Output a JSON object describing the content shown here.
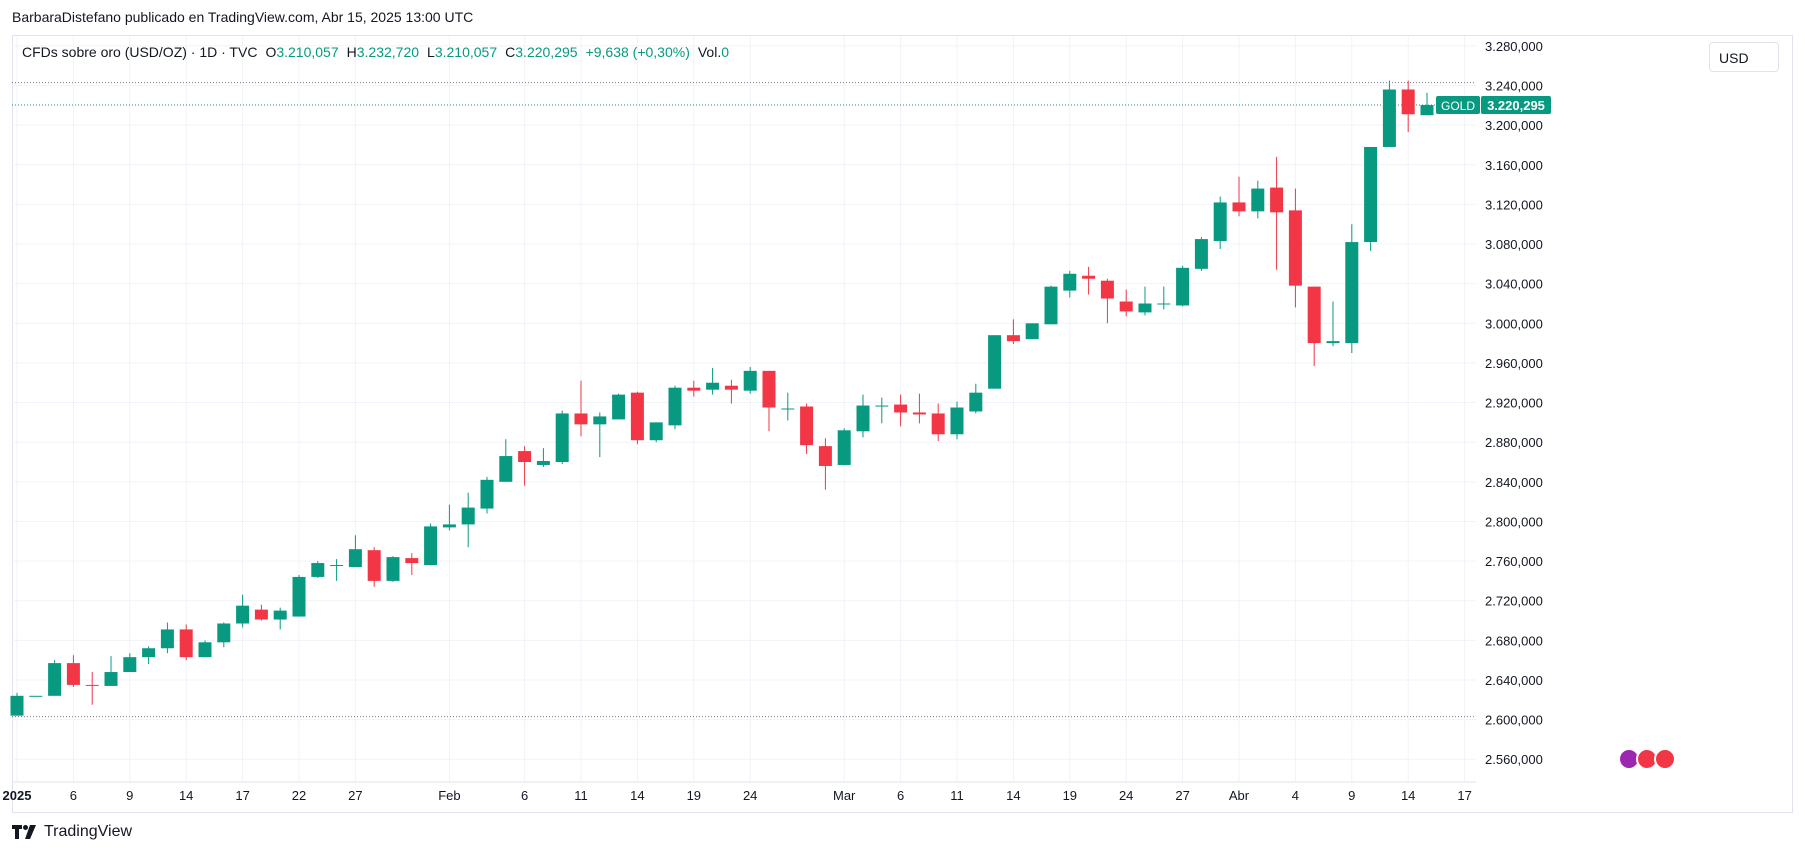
{
  "header": {
    "publish_line": "BarbaraDistefano publicado en TradingView.com, Abr 15, 2025 13:00 UTC"
  },
  "legend": {
    "symbol": "CFDs sobre oro (USD/OZ) · 1D · TVC",
    "open_label": "O",
    "open_value": "3.210,057",
    "high_label": "H",
    "high_value": "3.232,720",
    "low_label": "L",
    "low_value": "3.210,057",
    "close_label": "C",
    "close_value": "3.220,295",
    "change": "+9,638 (+0,30%)",
    "vol_label": "Vol.",
    "vol_value": "0"
  },
  "currency_button": "USD",
  "price_tag": {
    "symbol": "GOLD",
    "value": "3.220,295"
  },
  "brand": "TradingView",
  "colors": {
    "up": "#089981",
    "down": "#f23645",
    "grid": "#f0f3fa",
    "axis_text": "#131722"
  },
  "chart_data": {
    "type": "candlestick",
    "y_axis_ticks": [
      "2.560,000",
      "2.600,000",
      "2.640,000",
      "2.680,000",
      "2.720,000",
      "2.760,000",
      "2.800,000",
      "2.840,000",
      "2.880,000",
      "2.920,000",
      "2.960,000",
      "3.000,000",
      "3.040,000",
      "3.080,000",
      "3.120,000",
      "3.160,000",
      "3.200,000",
      "3.240,000",
      "3.280,000"
    ],
    "y_tick_values": [
      2560,
      2600,
      2640,
      2680,
      2720,
      2760,
      2800,
      2840,
      2880,
      2920,
      2960,
      3000,
      3040,
      3080,
      3120,
      3160,
      3200,
      3240,
      3280
    ],
    "ylim": [
      2537,
      3290
    ],
    "x_axis_labels": [
      {
        "label": "2025",
        "index": 0,
        "bold": true
      },
      {
        "label": "6",
        "index": 3
      },
      {
        "label": "9",
        "index": 6
      },
      {
        "label": "14",
        "index": 9
      },
      {
        "label": "17",
        "index": 12
      },
      {
        "label": "22",
        "index": 15
      },
      {
        "label": "27",
        "index": 18
      },
      {
        "label": "Feb",
        "index": 23
      },
      {
        "label": "6",
        "index": 27
      },
      {
        "label": "11",
        "index": 30
      },
      {
        "label": "14",
        "index": 33
      },
      {
        "label": "19",
        "index": 36
      },
      {
        "label": "24",
        "index": 39
      },
      {
        "label": "Mar",
        "index": 44
      },
      {
        "label": "6",
        "index": 47
      },
      {
        "label": "11",
        "index": 50
      },
      {
        "label": "14",
        "index": 53
      },
      {
        "label": "19",
        "index": 56
      },
      {
        "label": "24",
        "index": 59
      },
      {
        "label": "27",
        "index": 62
      },
      {
        "label": "Abr",
        "index": 65
      },
      {
        "label": "4",
        "index": 68
      },
      {
        "label": "9",
        "index": 71
      },
      {
        "label": "14",
        "index": 74
      },
      {
        "label": "17",
        "index": 77
      }
    ],
    "dotted_levels": [
      3243,
      3220.295,
      2603
    ],
    "last_close": 3220.295,
    "candles": [
      {
        "o": 2604,
        "h": 2627,
        "l": 2604,
        "c": 2624
      },
      {
        "o": 2624,
        "h": 2624,
        "l": 2624,
        "c": 2624
      },
      {
        "o": 2624,
        "h": 2660,
        "l": 2624,
        "c": 2657
      },
      {
        "o": 2657,
        "h": 2665,
        "l": 2633,
        "c": 2635
      },
      {
        "o": 2635,
        "h": 2648,
        "l": 2615,
        "c": 2634
      },
      {
        "o": 2634,
        "h": 2664,
        "l": 2634,
        "c": 2648
      },
      {
        "o": 2648,
        "h": 2667,
        "l": 2648,
        "c": 2663
      },
      {
        "o": 2663,
        "h": 2674,
        "l": 2656,
        "c": 2672
      },
      {
        "o": 2672,
        "h": 2698,
        "l": 2667,
        "c": 2691
      },
      {
        "o": 2691,
        "h": 2696,
        "l": 2660,
        "c": 2663
      },
      {
        "o": 2663,
        "h": 2680,
        "l": 2663,
        "c": 2678
      },
      {
        "o": 2678,
        "h": 2698,
        "l": 2673,
        "c": 2697
      },
      {
        "o": 2697,
        "h": 2726,
        "l": 2693,
        "c": 2715
      },
      {
        "o": 2711,
        "h": 2716,
        "l": 2700,
        "c": 2701
      },
      {
        "o": 2701,
        "h": 2713,
        "l": 2691,
        "c": 2710
      },
      {
        "o": 2704,
        "h": 2746,
        "l": 2704,
        "c": 2744
      },
      {
        "o": 2744,
        "h": 2760,
        "l": 2743,
        "c": 2758
      },
      {
        "o": 2755,
        "h": 2762,
        "l": 2740,
        "c": 2756
      },
      {
        "o": 2754,
        "h": 2786,
        "l": 2754,
        "c": 2772
      },
      {
        "o": 2771,
        "h": 2774,
        "l": 2734,
        "c": 2740
      },
      {
        "o": 2740,
        "h": 2765,
        "l": 2739,
        "c": 2764
      },
      {
        "o": 2763,
        "h": 2768,
        "l": 2746,
        "c": 2758
      },
      {
        "o": 2756,
        "h": 2798,
        "l": 2756,
        "c": 2795
      },
      {
        "o": 2794,
        "h": 2817,
        "l": 2791,
        "c": 2797
      },
      {
        "o": 2797,
        "h": 2829,
        "l": 2774,
        "c": 2814
      },
      {
        "o": 2813,
        "h": 2845,
        "l": 2808,
        "c": 2842
      },
      {
        "o": 2840,
        "h": 2883,
        "l": 2840,
        "c": 2866
      },
      {
        "o": 2871,
        "h": 2876,
        "l": 2836,
        "c": 2860
      },
      {
        "o": 2857,
        "h": 2874,
        "l": 2855,
        "c": 2861
      },
      {
        "o": 2860,
        "h": 2912,
        "l": 2858,
        "c": 2909
      },
      {
        "o": 2909,
        "h": 2942,
        "l": 2886,
        "c": 2898
      },
      {
        "o": 2898,
        "h": 2910,
        "l": 2865,
        "c": 2906
      },
      {
        "o": 2903,
        "h": 2929,
        "l": 2903,
        "c": 2928
      },
      {
        "o": 2930,
        "h": 2931,
        "l": 2878,
        "c": 2882
      },
      {
        "o": 2882,
        "h": 2900,
        "l": 2880,
        "c": 2900
      },
      {
        "o": 2897,
        "h": 2937,
        "l": 2893,
        "c": 2935
      },
      {
        "o": 2935,
        "h": 2942,
        "l": 2926,
        "c": 2932
      },
      {
        "o": 2933,
        "h": 2955,
        "l": 2928,
        "c": 2940
      },
      {
        "o": 2937,
        "h": 2943,
        "l": 2919,
        "c": 2933
      },
      {
        "o": 2932,
        "h": 2956,
        "l": 2929,
        "c": 2952
      },
      {
        "o": 2952,
        "h": 2952,
        "l": 2891,
        "c": 2915
      },
      {
        "o": 2914,
        "h": 2930,
        "l": 2902,
        "c": 2914
      },
      {
        "o": 2916,
        "h": 2919,
        "l": 2868,
        "c": 2877
      },
      {
        "o": 2876,
        "h": 2884,
        "l": 2832,
        "c": 2856
      },
      {
        "o": 2857,
        "h": 2894,
        "l": 2857,
        "c": 2892
      },
      {
        "o": 2891,
        "h": 2928,
        "l": 2885,
        "c": 2917
      },
      {
        "o": 2917,
        "h": 2925,
        "l": 2899,
        "c": 2917
      },
      {
        "o": 2918,
        "h": 2928,
        "l": 2896,
        "c": 2910
      },
      {
        "o": 2910,
        "h": 2929,
        "l": 2899,
        "c": 2908
      },
      {
        "o": 2909,
        "h": 2919,
        "l": 2881,
        "c": 2888
      },
      {
        "o": 2888,
        "h": 2921,
        "l": 2883,
        "c": 2915
      },
      {
        "o": 2911,
        "h": 2939,
        "l": 2909,
        "c": 2930
      },
      {
        "o": 2934,
        "h": 2988,
        "l": 2934,
        "c": 2988
      },
      {
        "o": 2988,
        "h": 3004,
        "l": 2979,
        "c": 2982
      },
      {
        "o": 2984,
        "h": 3000,
        "l": 2984,
        "c": 3000
      },
      {
        "o": 2999,
        "h": 3038,
        "l": 2999,
        "c": 3037
      },
      {
        "o": 3033,
        "h": 3053,
        "l": 3026,
        "c": 3050
      },
      {
        "o": 3048,
        "h": 3057,
        "l": 3029,
        "c": 3045
      },
      {
        "o": 3043,
        "h": 3045,
        "l": 3000,
        "c": 3025
      },
      {
        "o": 3022,
        "h": 3034,
        "l": 3007,
        "c": 3012
      },
      {
        "o": 3011,
        "h": 3037,
        "l": 3008,
        "c": 3020
      },
      {
        "o": 3019,
        "h": 3037,
        "l": 3014,
        "c": 3020
      },
      {
        "o": 3018,
        "h": 3058,
        "l": 3017,
        "c": 3056
      },
      {
        "o": 3055,
        "h": 3087,
        "l": 3053,
        "c": 3085
      },
      {
        "o": 3083,
        "h": 3128,
        "l": 3075,
        "c": 3122
      },
      {
        "o": 3122,
        "h": 3148,
        "l": 3108,
        "c": 3113
      },
      {
        "o": 3113,
        "h": 3144,
        "l": 3106,
        "c": 3136
      },
      {
        "o": 3137,
        "h": 3168,
        "l": 3054,
        "c": 3112
      },
      {
        "o": 3114,
        "h": 3136,
        "l": 3016,
        "c": 3038
      },
      {
        "o": 3037,
        "h": 3037,
        "l": 2957,
        "c": 2980
      },
      {
        "o": 2980,
        "h": 3022,
        "l": 2977,
        "c": 2982
      },
      {
        "o": 2980,
        "h": 3100,
        "l": 2970,
        "c": 3082
      },
      {
        "o": 3082,
        "h": 3178,
        "l": 3073,
        "c": 3178
      },
      {
        "o": 3178,
        "h": 3245,
        "l": 3178,
        "c": 3236
      },
      {
        "o": 3236,
        "h": 3245,
        "l": 3193,
        "c": 3211
      },
      {
        "o": 3210.057,
        "h": 3232.72,
        "l": 3210.057,
        "c": 3220.295
      }
    ]
  }
}
